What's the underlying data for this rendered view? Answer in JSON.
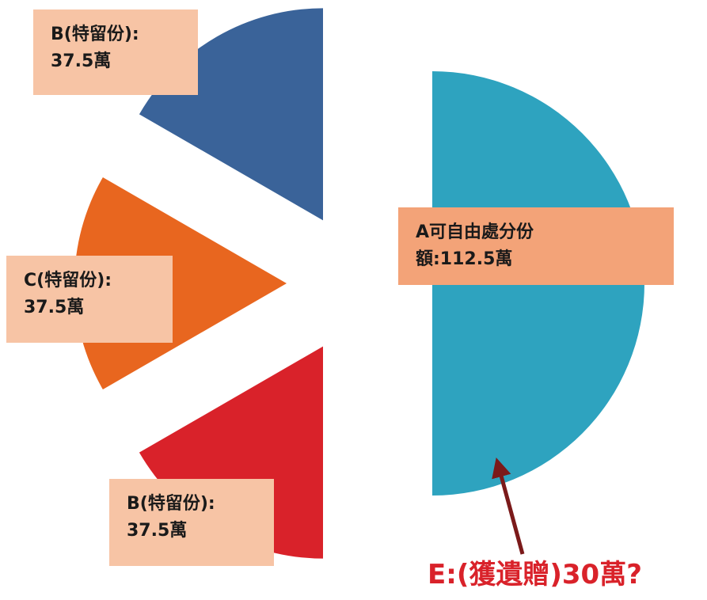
{
  "chart_data": {
    "type": "pie",
    "labels": [
      [
        "A可自由處分份",
        "額:112.5萬"
      ],
      [
        "B(特留份):",
        "37.5萬"
      ],
      [
        "C(特留份):",
        "37.5萬"
      ],
      [
        "B(特留份):",
        "37.5萬"
      ]
    ],
    "values": [
      112.5,
      37.5,
      37.5,
      37.5
    ],
    "colors": [
      "#2ea3bf",
      "#d9222a",
      "#e8661f",
      "#3a6399"
    ],
    "annotation": "E:(獲遺贈)30萬?"
  }
}
